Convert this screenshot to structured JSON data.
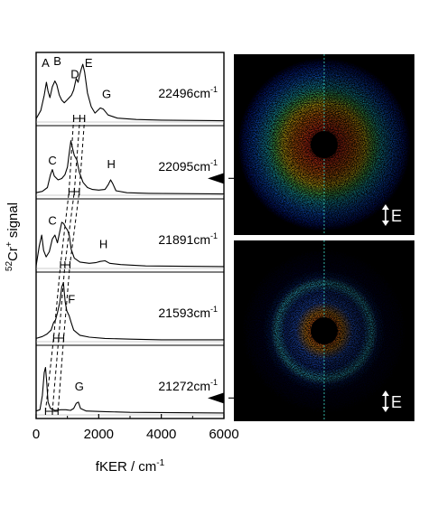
{
  "chart_data": {
    "type": "line",
    "title": "",
    "xlabel": "fKER / cm",
    "xlabel_sup": "-1",
    "ylabel_sup": "52",
    "ylabel_species": "Cr",
    "ylabel_charge": "+",
    "ylabel_text": " signal",
    "xlim": [
      0,
      6000
    ],
    "x_ticks": [
      0,
      2000,
      4000,
      6000
    ],
    "x_tick_labels": [
      "0",
      "2000",
      "4000",
      "6000"
    ],
    "grid": false,
    "legend": "none",
    "series": [
      {
        "label": "22496cm",
        "label_sup": "-1",
        "points": [
          [
            0,
            0.05
          ],
          [
            150,
            0.18
          ],
          [
            260,
            0.42
          ],
          [
            330,
            0.62
          ],
          [
            380,
            0.48
          ],
          [
            440,
            0.38
          ],
          [
            520,
            0.55
          ],
          [
            600,
            0.64
          ],
          [
            660,
            0.58
          ],
          [
            740,
            0.42
          ],
          [
            820,
            0.34
          ],
          [
            900,
            0.3
          ],
          [
            980,
            0.34
          ],
          [
            1060,
            0.38
          ],
          [
            1130,
            0.42
          ],
          [
            1200,
            0.5
          ],
          [
            1280,
            0.68
          ],
          [
            1340,
            0.62
          ],
          [
            1400,
            0.75
          ],
          [
            1450,
            0.84
          ],
          [
            1490,
            0.9
          ],
          [
            1550,
            0.78
          ],
          [
            1640,
            0.45
          ],
          [
            1760,
            0.24
          ],
          [
            1880,
            0.14
          ],
          [
            2050,
            0.22
          ],
          [
            2150,
            0.2
          ],
          [
            2300,
            0.11
          ],
          [
            2600,
            0.06
          ],
          [
            3200,
            0.04
          ],
          [
            4000,
            0.03
          ],
          [
            6000,
            0.02
          ]
        ],
        "peak_labels": [
          {
            "text": "A",
            "x": 300,
            "y": 0.86
          },
          {
            "text": "B",
            "x": 680,
            "y": 0.89
          },
          {
            "text": "D",
            "x": 1240,
            "y": 0.68
          },
          {
            "text": "E",
            "x": 1680,
            "y": 0.86
          },
          {
            "text": "G",
            "x": 2250,
            "y": 0.37
          }
        ]
      },
      {
        "label": "22095cm",
        "label_sup": "-1",
        "points": [
          [
            0,
            0.04
          ],
          [
            200,
            0.06
          ],
          [
            360,
            0.12
          ],
          [
            460,
            0.32
          ],
          [
            520,
            0.4
          ],
          [
            580,
            0.3
          ],
          [
            700,
            0.24
          ],
          [
            820,
            0.26
          ],
          [
            920,
            0.32
          ],
          [
            1000,
            0.44
          ],
          [
            1060,
            0.66
          ],
          [
            1110,
            0.85
          ],
          [
            1160,
            0.74
          ],
          [
            1220,
            0.62
          ],
          [
            1300,
            0.55
          ],
          [
            1380,
            0.36
          ],
          [
            1500,
            0.2
          ],
          [
            1640,
            0.12
          ],
          [
            1800,
            0.09
          ],
          [
            2000,
            0.08
          ],
          [
            2200,
            0.09
          ],
          [
            2300,
            0.16
          ],
          [
            2380,
            0.24
          ],
          [
            2450,
            0.18
          ],
          [
            2550,
            0.07
          ],
          [
            2900,
            0.04
          ],
          [
            3600,
            0.03
          ],
          [
            6000,
            0.02
          ]
        ],
        "peak_labels": [
          {
            "text": "C",
            "x": 520,
            "y": 0.48
          },
          {
            "text": "H",
            "x": 2400,
            "y": 0.42
          }
        ],
        "arrow": true
      },
      {
        "label": "21891cm",
        "label_sup": "-1",
        "points": [
          [
            0,
            0.04
          ],
          [
            100,
            0.35
          ],
          [
            180,
            0.52
          ],
          [
            240,
            0.28
          ],
          [
            320,
            0.18
          ],
          [
            420,
            0.26
          ],
          [
            520,
            0.46
          ],
          [
            600,
            0.52
          ],
          [
            680,
            0.4
          ],
          [
            760,
            0.58
          ],
          [
            820,
            0.72
          ],
          [
            880,
            0.7
          ],
          [
            940,
            0.64
          ],
          [
            1000,
            0.6
          ],
          [
            1060,
            0.52
          ],
          [
            1120,
            0.3
          ],
          [
            1220,
            0.16
          ],
          [
            1400,
            0.1
          ],
          [
            1700,
            0.08
          ],
          [
            1900,
            0.09
          ],
          [
            2050,
            0.11
          ],
          [
            2200,
            0.12
          ],
          [
            2350,
            0.08
          ],
          [
            2700,
            0.06
          ],
          [
            3500,
            0.04
          ],
          [
            6000,
            0.03
          ]
        ],
        "peak_labels": [
          {
            "text": "C",
            "x": 520,
            "y": 0.68
          },
          {
            "text": "H",
            "x": 2150,
            "y": 0.32
          }
        ]
      },
      {
        "label": "21593cm",
        "label_sup": "-1",
        "points": [
          [
            0,
            0.05
          ],
          [
            200,
            0.08
          ],
          [
            350,
            0.12
          ],
          [
            480,
            0.18
          ],
          [
            560,
            0.3
          ],
          [
            620,
            0.34
          ],
          [
            680,
            0.45
          ],
          [
            760,
            0.62
          ],
          [
            820,
            0.85
          ],
          [
            870,
            0.92
          ],
          [
            930,
            0.62
          ],
          [
            980,
            0.48
          ],
          [
            1060,
            0.4
          ],
          [
            1120,
            0.3
          ],
          [
            1200,
            0.18
          ],
          [
            1400,
            0.1
          ],
          [
            1700,
            0.07
          ],
          [
            2200,
            0.05
          ],
          [
            3000,
            0.04
          ],
          [
            4000,
            0.03
          ],
          [
            6000,
            0.03
          ]
        ],
        "peak_labels": [
          {
            "text": "F",
            "x": 1130,
            "y": 0.6
          }
        ]
      },
      {
        "label": "21272cm",
        "label_sup": "-1",
        "points": [
          [
            0,
            0.06
          ],
          [
            120,
            0.08
          ],
          [
            200,
            0.3
          ],
          [
            260,
            0.66
          ],
          [
            300,
            0.74
          ],
          [
            340,
            0.5
          ],
          [
            380,
            0.2
          ],
          [
            460,
            0.1
          ],
          [
            600,
            0.07
          ],
          [
            800,
            0.08
          ],
          [
            950,
            0.08
          ],
          [
            1100,
            0.07
          ],
          [
            1200,
            0.1
          ],
          [
            1280,
            0.18
          ],
          [
            1350,
            0.2
          ],
          [
            1420,
            0.1
          ],
          [
            1600,
            0.06
          ],
          [
            2200,
            0.05
          ],
          [
            3000,
            0.04
          ],
          [
            6000,
            0.03
          ]
        ],
        "peak_labels": [
          {
            "text": "G",
            "x": 1380,
            "y": 0.38
          }
        ],
        "arrow": true
      }
    ],
    "onset_markers": [
      [
        1200,
        1400,
        1550
      ],
      [
        1050,
        1220,
        1380
      ],
      [
        780,
        920,
        1080
      ],
      [
        560,
        720,
        880
      ],
      [
        300,
        520,
        700
      ]
    ],
    "images": [
      {
        "name": "velocity-map-image-upper",
        "rings": [
          {
            "r": 0.08,
            "color": "#000000"
          },
          {
            "r": 0.2,
            "color": "#ff3a1c"
          },
          {
            "r": 0.35,
            "color": "#ff7a10"
          },
          {
            "r": 0.47,
            "color": "#ffd818"
          },
          {
            "r": 0.57,
            "color": "#60e060"
          },
          {
            "r": 0.66,
            "color": "#20c8d8"
          },
          {
            "r": 0.8,
            "color": "#1060e8"
          },
          {
            "r": 0.92,
            "color": "#0a1890"
          },
          {
            "r": 1.0,
            "color": "#000000"
          }
        ],
        "polarization_label": "E"
      },
      {
        "name": "velocity-map-image-lower",
        "rings": [
          {
            "r": 0.06,
            "color": "#000000"
          },
          {
            "r": 0.13,
            "color": "#ff6018"
          },
          {
            "r": 0.22,
            "color": "#ffa020"
          },
          {
            "r": 0.33,
            "color": "#2860e8"
          },
          {
            "r": 0.45,
            "color": "#1438a8"
          },
          {
            "r": 0.55,
            "color": "#38c8e8"
          },
          {
            "r": 0.62,
            "color": "#0c2070"
          },
          {
            "r": 0.7,
            "color": "#060a30"
          },
          {
            "r": 1.0,
            "color": "#000000"
          }
        ],
        "polarization_label": "E"
      }
    ]
  }
}
